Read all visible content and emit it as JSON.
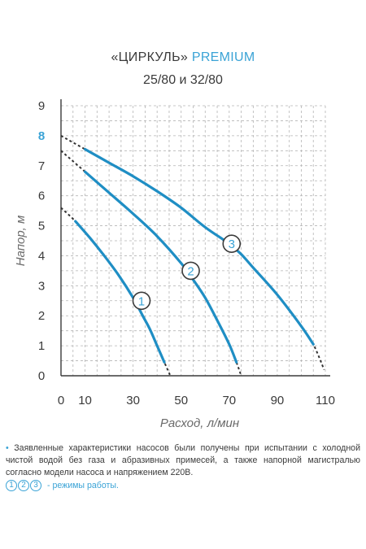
{
  "header": {
    "title_main": "«ЦИРКУЛЬ»",
    "title_accent": "PREMIUM",
    "subtitle": "25/80 и 32/80"
  },
  "note": {
    "bullet": "•",
    "text": "Заявленные характеристики насосов были получены при испытании с холодной чистой водой без газа и абразивных примесей, а также напорной магистралью согласно модели насоса и напряжением 220В."
  },
  "legend": {
    "markers": [
      "1",
      "2",
      "3"
    ],
    "text": "- режимы работы."
  },
  "colors": {
    "curve": "#1f8ec4",
    "accent": "#3aa3d6",
    "grid": "#b5b5b5",
    "axis": "#3a3a3a"
  },
  "chart_data": {
    "type": "line",
    "xlabel": "Расход, л/мин",
    "ylabel": "Напор, м",
    "xlim": [
      0,
      110
    ],
    "ylim": [
      0,
      9
    ],
    "x_ticks": [
      0,
      10,
      30,
      50,
      70,
      90,
      110
    ],
    "y_ticks": [
      0,
      1,
      2,
      3,
      4,
      5,
      6,
      7,
      8,
      9
    ],
    "highlight_y_tick": 8,
    "grid": true,
    "series": [
      {
        "name": "1",
        "x": [
          0,
          6,
          12,
          18,
          24,
          30,
          34,
          37,
          40,
          43,
          45.5
        ],
        "y": [
          5.6,
          5.15,
          4.6,
          4.0,
          3.35,
          2.6,
          2.0,
          1.55,
          1.0,
          0.45,
          0.0
        ],
        "label_at": [
          33.5,
          2.5
        ]
      },
      {
        "name": "2",
        "x": [
          0,
          10,
          20,
          30,
          40,
          50,
          55,
          60,
          65,
          70,
          73,
          75
        ],
        "y": [
          7.5,
          6.8,
          6.1,
          5.4,
          4.65,
          3.75,
          3.2,
          2.6,
          1.85,
          1.05,
          0.45,
          0.0
        ],
        "label_at": [
          54,
          3.5
        ]
      },
      {
        "name": "3",
        "x": [
          0,
          10,
          20,
          30,
          40,
          50,
          60,
          70,
          75,
          80,
          90,
          100,
          105,
          109.5
        ],
        "y": [
          8.0,
          7.55,
          7.1,
          6.65,
          6.15,
          5.6,
          4.95,
          4.4,
          4.05,
          3.6,
          2.7,
          1.65,
          1.05,
          0.2
        ],
        "label_at": [
          71,
          4.4
        ]
      }
    ]
  }
}
